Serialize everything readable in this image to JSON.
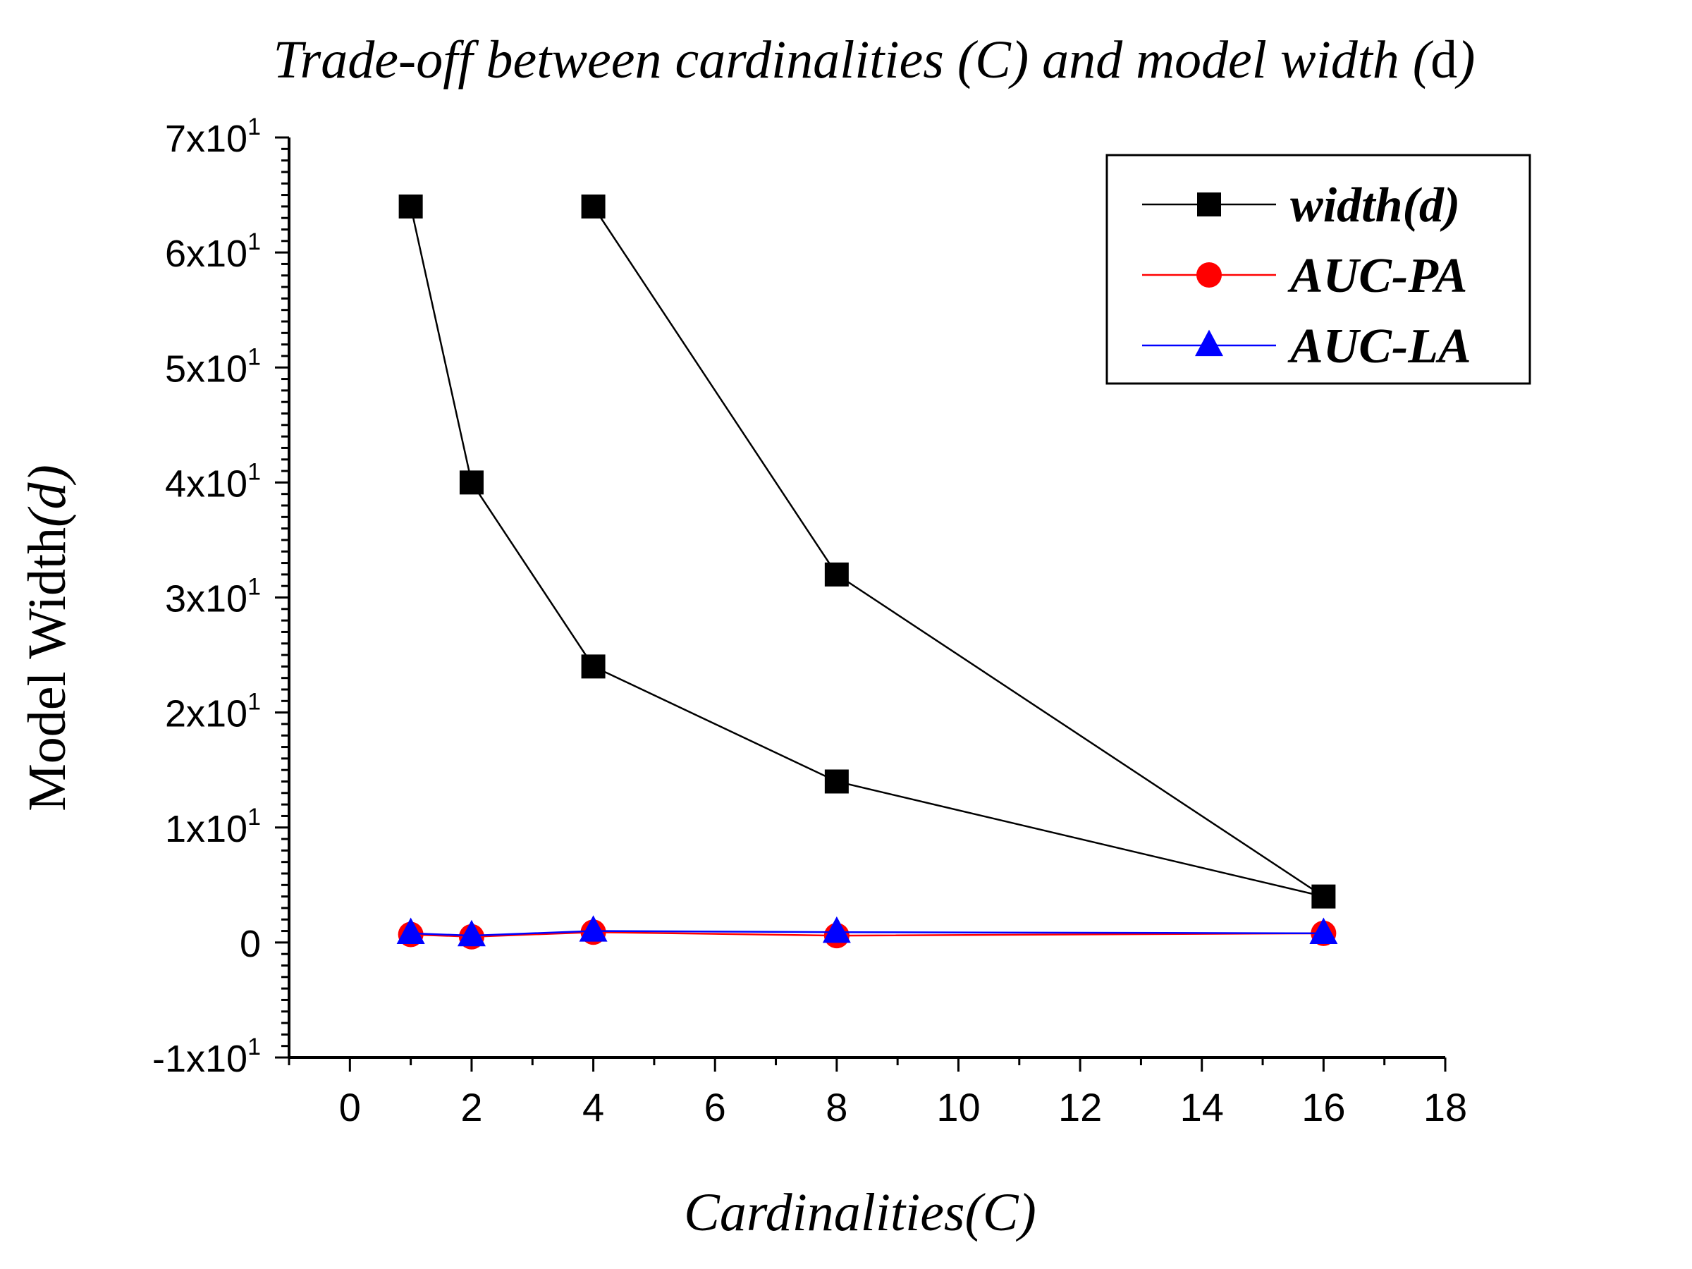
{
  "chart_data": {
    "type": "line",
    "title": {
      "prefix": "Trade-off between cardinalities (C) and model width (",
      "symbol": "d",
      "suffix": ")"
    },
    "xlabel": "Cardinalities(C)",
    "ylabel": {
      "main": "Model Width",
      "symbol": "(d)"
    },
    "xlim": [
      -1,
      18
    ],
    "ylim": [
      -10,
      70
    ],
    "x_ticks": [
      0,
      2,
      4,
      6,
      8,
      10,
      12,
      14,
      16,
      18
    ],
    "x_tick_labels": [
      "0",
      "2",
      "4",
      "6",
      "8",
      "10",
      "12",
      "14",
      "16",
      "18"
    ],
    "y_ticks": [
      {
        "value": -10,
        "base": "-1x10",
        "exp": "1"
      },
      {
        "value": 0,
        "base": "0",
        "exp": ""
      },
      {
        "value": 10,
        "base": "1x10",
        "exp": "1"
      },
      {
        "value": 20,
        "base": "2x10",
        "exp": "1"
      },
      {
        "value": 30,
        "base": "3x10",
        "exp": "1"
      },
      {
        "value": 40,
        "base": "4x10",
        "exp": "1"
      },
      {
        "value": 50,
        "base": "5x10",
        "exp": "1"
      },
      {
        "value": 60,
        "base": "6x10",
        "exp": "1"
      },
      {
        "value": 70,
        "base": "7x10",
        "exp": "1"
      }
    ],
    "legend_position": "top-right",
    "series": [
      {
        "name": "width(d)",
        "color": "#000000",
        "marker": "square",
        "x": [
          1,
          2,
          4,
          8,
          16,
          8,
          4
        ],
        "y": [
          64,
          40,
          24,
          14,
          4,
          32,
          64
        ]
      },
      {
        "name": "AUC-PA",
        "color": "#ff0000",
        "marker": "circle",
        "x": [
          1,
          2,
          4,
          8,
          16
        ],
        "y": [
          0.7,
          0.5,
          0.9,
          0.6,
          0.8
        ]
      },
      {
        "name": "AUC-LA",
        "color": "#0000ff",
        "marker": "triangle",
        "x": [
          1,
          2,
          4,
          8,
          16
        ],
        "y": [
          0.8,
          0.6,
          1.0,
          0.9,
          0.8
        ]
      }
    ]
  }
}
